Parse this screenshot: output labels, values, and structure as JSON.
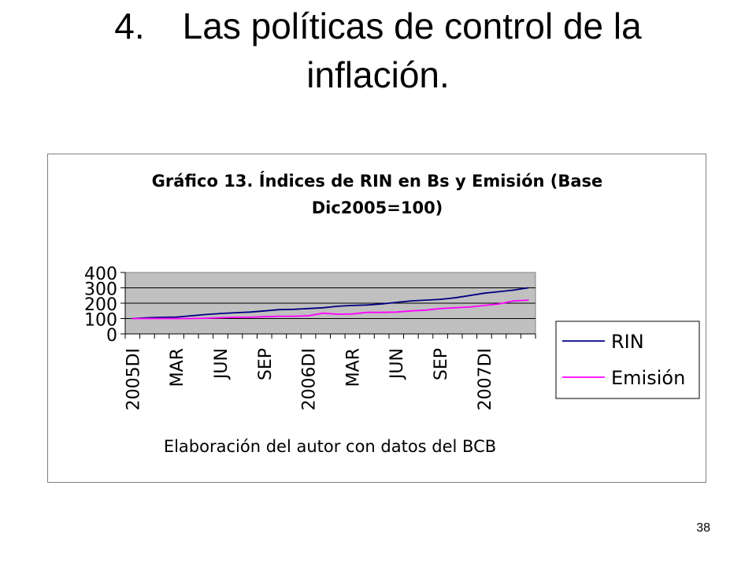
{
  "slide": {
    "title_number": "4.",
    "title_text_line1": "Las políticas de control de la",
    "title_text_line2": "inflación.",
    "page_number": "38"
  },
  "chart_data": {
    "type": "line",
    "title_line1": "Gráfico 13. Índices de RIN en Bs y Emisión (Base",
    "title_line2": "Dic2005=100)",
    "xlabel": "Elaboración del autor con datos del BCB",
    "ylabel": "",
    "ylim": [
      0,
      400
    ],
    "yticks": [
      "0",
      "100",
      "200",
      "300",
      "400"
    ],
    "grid": true,
    "legend_position": "right",
    "plot_background": "#c0c0c0",
    "categories": [
      "2005DI",
      "",
      "",
      "MAR",
      "",
      "",
      "JUN",
      "",
      "",
      "SEP",
      "",
      "",
      "2006DI",
      "",
      "",
      "MAR",
      "",
      "",
      "JUN",
      "",
      "",
      "SEP",
      "",
      "",
      "2007DI",
      "",
      "",
      ""
    ],
    "series": [
      {
        "name": "RIN",
        "color": "#000080",
        "values": [
          100,
          105,
          108,
          110,
          118,
          126,
          133,
          138,
          142,
          150,
          158,
          160,
          165,
          170,
          180,
          185,
          188,
          195,
          205,
          215,
          220,
          225,
          235,
          250,
          265,
          275,
          285,
          300
        ]
      },
      {
        "name": "Emisión",
        "color": "#ff00ff",
        "values": [
          100,
          100,
          100,
          100,
          100,
          102,
          105,
          108,
          108,
          112,
          115,
          115,
          118,
          135,
          128,
          130,
          140,
          140,
          142,
          150,
          155,
          165,
          170,
          175,
          185,
          195,
          215,
          220
        ]
      }
    ]
  }
}
